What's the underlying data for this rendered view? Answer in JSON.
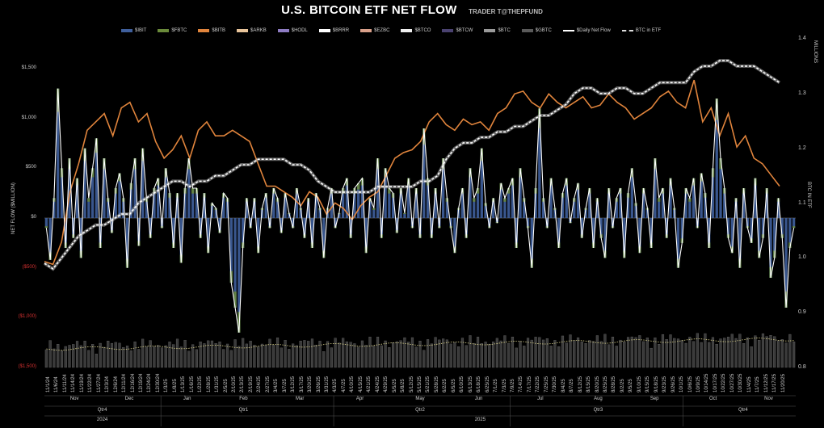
{
  "title": "U.S. BITCOIN ETF NET FLOW",
  "subtitle": "TRADER T@THEPFUND",
  "colors": {
    "IBIT": "#3f5f9c",
    "FBTC": "#6a8a3a",
    "BITB": "#e0843c",
    "ARKB": "#e8c49a",
    "HODL": "#8e7cc3",
    "BRRR": "#ffffff",
    "EZBC": "#d9a08a",
    "BTCO": "#f0f0f0",
    "BTCW": "#4a4270",
    "BTC": "#9a9a9a",
    "GBTC": "#5a5a5a",
    "daily": "#ffffff",
    "btc_in_etf": "#dddddd",
    "price": "#e0843c",
    "neg_label": "#d43030"
  },
  "legend": [
    "$IBIT",
    "$FBTC",
    "$BITB",
    "$ARKB",
    "$HODL",
    "$BRRR",
    "$EZBC",
    "$BTCO",
    "$BTCW",
    "$BTC",
    "$GBTC",
    "$Daily Net Flow",
    "BTC in ETF"
  ],
  "chart_data": {
    "type": "bar",
    "ylabel": "NET FLOW ($MILLION)",
    "y2label": "BTC IN ETF",
    "y2unit": "MILLIONS",
    "ylim": [
      -1500,
      1800
    ],
    "y_ticks": [
      {
        "value": 1500,
        "label": "$1,500"
      },
      {
        "value": 1000,
        "label": "$1,000"
      },
      {
        "value": 500,
        "label": "$500"
      },
      {
        "value": 0,
        "label": "$0"
      },
      {
        "value": -500,
        "label": "($500)"
      },
      {
        "value": -1000,
        "label": "($1,000)"
      },
      {
        "value": -1500,
        "label": "($1,500)"
      }
    ],
    "y2lim": [
      0.8,
      1.4
    ],
    "y2_ticks": [
      "1.4",
      "1.3",
      "1.2",
      "1.1",
      "1.0",
      "0.9",
      "0.8"
    ],
    "x_ticks": [
      "11/1/24",
      "11/6/24",
      "11/11/24",
      "11/14/24",
      "11/19/24",
      "11/22/24",
      "11/27/24",
      "12/3/24",
      "12/6/24",
      "12/11/24",
      "12/16/24",
      "12/19/24",
      "12/24/24",
      "12/30/24",
      "1/3/25",
      "1/8/25",
      "1/13/25",
      "1/16/25",
      "1/22/25",
      "1/28/25",
      "1/31/25",
      "2/5/25",
      "2/10/25",
      "2/13/25",
      "2/19/25",
      "2/24/25",
      "2/27/25",
      "3/4/25",
      "3/7/25",
      "3/12/25",
      "3/17/25",
      "3/20/25",
      "3/26/25",
      "3/31/25",
      "4/3/25",
      "4/7/25",
      "4/10/25",
      "4/15/25",
      "4/21/25",
      "4/24/25",
      "4/29/25",
      "5/5/25",
      "5/8/25",
      "5/12/25",
      "5/15/25",
      "5/21/25",
      "5/28/25",
      "6/2/25",
      "6/5/25",
      "6/10/25",
      "6/13/25",
      "6/18/25",
      "6/25/25",
      "7/1/25",
      "7/3/25",
      "7/9/25",
      "7/14/25",
      "7/17/25",
      "7/22/25",
      "7/25/25",
      "7/30/25",
      "8/4/25",
      "8/7/25",
      "8/12/25",
      "8/15/25",
      "8/20/25",
      "8/25/25",
      "8/28/25",
      "9/2/25",
      "9/5/25",
      "9/10/25",
      "9/15/25",
      "9/18/25",
      "9/23/25",
      "9/26/25",
      "10/1/25",
      "10/6/25",
      "10/9/25",
      "10/14/25",
      "10/17/25",
      "10/22/25",
      "10/27/25",
      "10/30/25",
      "11/4/25",
      "11/7/25",
      "11/12/25",
      "11/17/25",
      "11/20/25"
    ],
    "months": [
      {
        "label": "Nov",
        "pos": 0.04
      },
      {
        "label": "Dec",
        "pos": 0.113
      },
      {
        "label": "Jan",
        "pos": 0.19
      },
      {
        "label": "Feb",
        "pos": 0.265
      },
      {
        "label": "Mar",
        "pos": 0.34
      },
      {
        "label": "Apr",
        "pos": 0.42
      },
      {
        "label": "May",
        "pos": 0.5
      },
      {
        "label": "Jun",
        "pos": 0.578
      },
      {
        "label": "Jul",
        "pos": 0.66
      },
      {
        "label": "Aug",
        "pos": 0.737
      },
      {
        "label": "Sep",
        "pos": 0.812
      },
      {
        "label": "Oct",
        "pos": 0.89
      },
      {
        "label": "Nov",
        "pos": 0.964
      }
    ],
    "quarters": [
      {
        "label": "Qtr4",
        "pos": 0.077
      },
      {
        "label": "Qtr1",
        "pos": 0.265
      },
      {
        "label": "Qtr2",
        "pos": 0.5
      },
      {
        "label": "Qtr3",
        "pos": 0.737
      },
      {
        "label": "Qtr4",
        "pos": 0.93
      }
    ],
    "years": [
      {
        "label": "2024",
        "pos": 0.077
      },
      {
        "label": "2025",
        "pos": 0.58
      }
    ],
    "daily_net_flow": [
      -100,
      -420,
      200,
      1300,
      500,
      -300,
      600,
      -200,
      400,
      -400,
      700,
      200,
      500,
      800,
      -300,
      600,
      200,
      -150,
      300,
      450,
      200,
      -500,
      350,
      600,
      -280,
      700,
      200,
      -200,
      300,
      400,
      -100,
      500,
      250,
      -300,
      250,
      -450,
      300,
      600,
      300,
      300,
      -200,
      250,
      -350,
      150,
      100,
      -150,
      250,
      200,
      -650,
      -900,
      -1150,
      -300,
      200,
      -100,
      200,
      -350,
      100,
      250,
      -100,
      300,
      200,
      -150,
      250,
      50,
      -100,
      300,
      100,
      -200,
      200,
      -300,
      250,
      100,
      -400,
      100,
      300,
      -100,
      50,
      300,
      400,
      -200,
      300,
      350,
      400,
      -350,
      200,
      100,
      600,
      -200,
      500,
      300,
      250,
      -150,
      300,
      50,
      400,
      -100,
      300,
      -200,
      900,
      400,
      -200,
      300,
      -100,
      600,
      200,
      -100,
      -350,
      100,
      300,
      -200,
      500,
      200,
      300,
      700,
      150,
      -100,
      200,
      -50,
      350,
      200,
      300,
      400,
      -300,
      500,
      200,
      -100,
      -500,
      300,
      1100,
      200,
      -100,
      400,
      100,
      -300,
      250,
      400,
      -50,
      200,
      350,
      -200,
      100,
      300,
      -300,
      200,
      -200,
      -400,
      300,
      -100,
      200,
      300,
      -400,
      250,
      500,
      150,
      -350,
      300,
      100,
      -300,
      600,
      200,
      300,
      -200,
      400,
      100,
      -500,
      -250,
      300,
      200,
      400,
      -100,
      450,
      250,
      -300,
      500,
      1200,
      600,
      300,
      -200,
      -350,
      200,
      -500,
      300,
      -100,
      -250,
      400,
      -400,
      -200,
      300,
      -600,
      -400,
      200,
      -200,
      -900,
      -300,
      -100
    ],
    "btc_in_etf": [
      0.99,
      0.98,
      1.0,
      1.02,
      1.04,
      1.05,
      1.06,
      1.06,
      1.07,
      1.08,
      1.08,
      1.1,
      1.11,
      1.12,
      1.13,
      1.14,
      1.14,
      1.13,
      1.14,
      1.14,
      1.15,
      1.15,
      1.16,
      1.17,
      1.17,
      1.18,
      1.18,
      1.18,
      1.18,
      1.17,
      1.17,
      1.16,
      1.14,
      1.13,
      1.12,
      1.12,
      1.12,
      1.12,
      1.12,
      1.13,
      1.13,
      1.13,
      1.13,
      1.13,
      1.14,
      1.14,
      1.15,
      1.18,
      1.2,
      1.21,
      1.21,
      1.22,
      1.22,
      1.23,
      1.23,
      1.24,
      1.24,
      1.25,
      1.26,
      1.26,
      1.27,
      1.28,
      1.3,
      1.31,
      1.31,
      1.3,
      1.3,
      1.31,
      1.31,
      1.3,
      1.3,
      1.31,
      1.32,
      1.32,
      1.32,
      1.32,
      1.34,
      1.35,
      1.35,
      1.36,
      1.36,
      1.35,
      1.35,
      1.35,
      1.34,
      1.33,
      1.32
    ],
    "btc_price_line": [
      0.35,
      0.34,
      0.42,
      0.6,
      0.7,
      0.82,
      0.85,
      0.88,
      0.8,
      0.9,
      0.92,
      0.85,
      0.88,
      0.78,
      0.72,
      0.75,
      0.8,
      0.72,
      0.82,
      0.85,
      0.8,
      0.8,
      0.82,
      0.8,
      0.78,
      0.7,
      0.62,
      0.62,
      0.6,
      0.58,
      0.55,
      0.6,
      0.58,
      0.52,
      0.56,
      0.54,
      0.5,
      0.55,
      0.58,
      0.6,
      0.66,
      0.72,
      0.74,
      0.75,
      0.78,
      0.85,
      0.88,
      0.84,
      0.82,
      0.86,
      0.84,
      0.85,
      0.82,
      0.88,
      0.9,
      0.95,
      0.96,
      0.92,
      0.9,
      0.95,
      0.92,
      0.9,
      0.92,
      0.94,
      0.9,
      0.91,
      0.95,
      0.92,
      0.9,
      0.86,
      0.88,
      0.9,
      0.94,
      0.96,
      0.92,
      0.9,
      1.0,
      0.85,
      0.9,
      0.8,
      0.88,
      0.76,
      0.8,
      0.72,
      0.7,
      0.66,
      0.62
    ]
  }
}
